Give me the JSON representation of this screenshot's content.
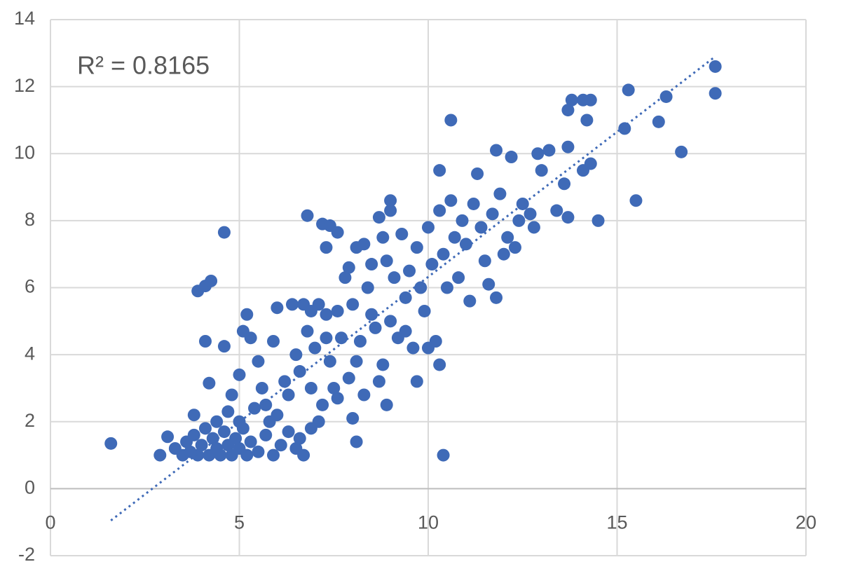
{
  "chart_data": {
    "type": "scatter",
    "annotation": "R² = 0.8165",
    "color": "#3f6ab7",
    "trendline": {
      "color": "#3f6ab7",
      "x": [
        1.6,
        17.6
      ],
      "values": [
        -0.95,
        12.9
      ]
    },
    "x": [
      1.6,
      2.9,
      3.1,
      3.9,
      4.1,
      4.25,
      4.1,
      4.6,
      4.6,
      4.2,
      3.8,
      10.4,
      10.6,
      8.1,
      8.0,
      8.9,
      9.7,
      10.3,
      6.8,
      7.2,
      7.4,
      7.6,
      7.3,
      8.1,
      8.3,
      9.0,
      10.3,
      11.3,
      11.8,
      12.2,
      12.9,
      13.2,
      13.8,
      13.7,
      14.1,
      14.3,
      14.2,
      13.7,
      13.4,
      13.7,
      14.5,
      14.3,
      14.1,
      13.0,
      13.6,
      15.2,
      15.3,
      16.1,
      16.3,
      15.5,
      16.7,
      17.6,
      17.6,
      11.8,
      11.6,
      11.1,
      12.0,
      12.3,
      12.8,
      12.5,
      12.7,
      3.3,
      3.5,
      3.6,
      3.7,
      3.8,
      3.9,
      4.0,
      4.1,
      4.2,
      4.3,
      4.4,
      4.5,
      4.6,
      4.7,
      4.8,
      4.9,
      5.0,
      5.1,
      5.2,
      5.3,
      5.5,
      5.7,
      5.9,
      6.1,
      6.3,
      6.5,
      6.7,
      6.9,
      4.4,
      4.7,
      4.8,
      5.0,
      5.2,
      5.1,
      5.3,
      5.5,
      5.6,
      5.7,
      5.8,
      5.9,
      6.0,
      6.2,
      6.3,
      6.4,
      6.5,
      6.6,
      6.7,
      6.8,
      6.9,
      7.0,
      7.1,
      7.2,
      7.3,
      7.4,
      7.5,
      7.6,
      7.7,
      7.8,
      7.9,
      8.0,
      8.1,
      8.2,
      8.3,
      8.4,
      8.5,
      8.6,
      8.7,
      8.8,
      8.9,
      9.0,
      9.1,
      9.2,
      9.3,
      9.4,
      9.5,
      9.6,
      9.7,
      9.8,
      9.9,
      10.0,
      10.1,
      10.2,
      10.3,
      10.4,
      10.5,
      10.6,
      10.7,
      10.8,
      10.9,
      11.0,
      11.2,
      11.4,
      11.5,
      11.7,
      11.9,
      12.1,
      12.4,
      6.0,
      6.6,
      7.1,
      7.9,
      8.8,
      9.4,
      10.0,
      9.0,
      8.5,
      7.6,
      7.3,
      6.9,
      5.4,
      5.0,
      8.7
    ],
    "values": [
      1.35,
      1.0,
      1.55,
      5.9,
      6.05,
      6.2,
      4.4,
      7.65,
      4.25,
      3.15,
      2.2,
      1.0,
      11.0,
      1.4,
      2.1,
      2.5,
      3.2,
      3.7,
      8.15,
      7.9,
      7.85,
      7.65,
      7.2,
      7.2,
      7.3,
      8.6,
      9.5,
      9.4,
      10.1,
      9.9,
      10.0,
      10.1,
      11.6,
      11.3,
      11.6,
      11.6,
      11.0,
      10.2,
      8.3,
      8.1,
      8.0,
      9.7,
      9.5,
      9.5,
      9.1,
      10.75,
      11.9,
      10.95,
      11.7,
      8.6,
      10.05,
      12.6,
      11.8,
      5.7,
      6.1,
      5.6,
      7.0,
      7.2,
      7.8,
      8.5,
      8.2,
      1.2,
      1.0,
      1.4,
      1.1,
      1.6,
      1.0,
      1.3,
      1.8,
      1.0,
      1.5,
      1.2,
      1.0,
      1.7,
      1.3,
      1.0,
      1.5,
      1.2,
      1.8,
      1.0,
      1.4,
      1.1,
      1.6,
      1.0,
      1.3,
      1.7,
      1.2,
      1.0,
      1.8,
      2.0,
      2.3,
      2.8,
      3.4,
      5.2,
      4.7,
      4.5,
      3.8,
      3.0,
      2.5,
      2.0,
      4.4,
      5.4,
      3.2,
      2.8,
      5.5,
      4.0,
      3.5,
      5.5,
      4.7,
      3.0,
      4.2,
      5.5,
      2.5,
      5.2,
      3.8,
      3.0,
      2.7,
      4.5,
      6.3,
      6.6,
      5.5,
      3.8,
      4.4,
      2.8,
      6.0,
      5.2,
      4.8,
      3.2,
      7.5,
      6.8,
      5.0,
      6.3,
      4.5,
      7.6,
      5.7,
      6.5,
      4.2,
      7.2,
      6.0,
      5.3,
      7.8,
      6.7,
      4.4,
      8.3,
      7.0,
      6.0,
      8.6,
      7.5,
      6.3,
      8.0,
      7.3,
      8.5,
      7.8,
      6.8,
      8.2,
      8.8,
      7.5,
      8.0,
      2.2,
      1.5,
      2.0,
      3.3,
      3.7,
      4.7,
      4.2,
      8.3,
      6.7,
      5.3,
      4.5,
      5.3,
      2.4,
      2.0,
      8.1
    ],
    "xlim": [
      0,
      20
    ],
    "xticks": [
      0,
      5,
      10,
      15,
      20
    ],
    "ylim": [
      -2,
      14
    ],
    "yticks": [
      -2,
      0,
      2,
      4,
      6,
      8,
      10,
      12,
      14
    ],
    "grid": true
  }
}
